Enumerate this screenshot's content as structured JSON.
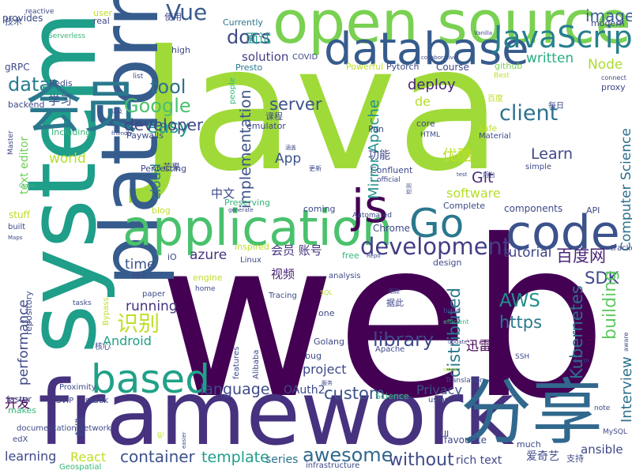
{
  "words": [
    {
      "text": "Java",
      "color": "#a0da39"
    },
    {
      "text": "web",
      "color": "#440154"
    },
    {
      "text": "open source",
      "color": "#7ad151"
    },
    {
      "text": "framework",
      "color": "#46327e"
    },
    {
      "text": "system",
      "color": "#1f9e89"
    },
    {
      "text": "platform",
      "color": "#365c8d"
    },
    {
      "text": "application",
      "color": "#4ac16d"
    },
    {
      "text": "database",
      "color": "#365c8d"
    },
    {
      "text": "会员",
      "color": "#2a788e"
    },
    {
      "text": "分享",
      "color": "#31688e"
    },
    {
      "text": "code",
      "color": "#3b528b"
    },
    {
      "text": "js",
      "color": "#440154"
    },
    {
      "text": "Go",
      "color": "#2a788e"
    },
    {
      "text": "based",
      "color": "#1fa187"
    },
    {
      "text": "JavaScript",
      "color": "#277f8e"
    },
    {
      "text": "development",
      "color": "#433e85"
    },
    {
      "text": "Vue",
      "color": "#365c8d"
    },
    {
      "text": "docs",
      "color": "#3e4989"
    },
    {
      "text": "image",
      "color": "#355f8d"
    },
    {
      "text": "Google",
      "color": "#4ac16d"
    },
    {
      "text": "tool",
      "color": "#2e6f8e"
    },
    {
      "text": "data",
      "color": "#287c8e"
    },
    {
      "text": "client",
      "color": "#2c728e"
    },
    {
      "text": "server",
      "color": "#3b528b"
    },
    {
      "text": "easy",
      "color": "#1f9a8a"
    },
    {
      "text": "developer",
      "color": "#3f4788"
    },
    {
      "text": "world",
      "color": "#b5de2b"
    },
    {
      "text": "识别",
      "color": "#bddf26"
    },
    {
      "text": "language",
      "color": "#3e4989"
    },
    {
      "text": "container",
      "color": "#3b528b"
    },
    {
      "text": "template",
      "color": "#1f9e89"
    },
    {
      "text": "awesome",
      "color": "#31688e"
    },
    {
      "text": "without",
      "color": "#3e4a89"
    },
    {
      "text": "custom",
      "color": "#3b528b"
    },
    {
      "text": "library",
      "color": "#3e4989"
    },
    {
      "text": "distributed",
      "color": "#2a788e"
    },
    {
      "text": "https",
      "color": "#2a788e"
    },
    {
      "text": "AWS",
      "color": "#21918c"
    },
    {
      "text": "SDK",
      "color": "#3e4989"
    },
    {
      "text": "Kubernetes",
      "color": "#2d708e"
    },
    {
      "text": "building",
      "color": "#5ec962"
    },
    {
      "text": "Interview",
      "color": "#2d708e"
    },
    {
      "text": "百度网",
      "color": "#482475"
    },
    {
      "text": "tutorial",
      "color": "#404688"
    },
    {
      "text": "Computer Science",
      "color": "#2d708e"
    },
    {
      "text": "Learn",
      "color": "#3f4788"
    },
    {
      "text": "Git",
      "color": "#472d7b"
    },
    {
      "text": "App",
      "color": "#3b528b"
    },
    {
      "text": "优酷",
      "color": "#bddf26"
    },
    {
      "text": "implementation",
      "color": "#3b528b"
    },
    {
      "text": "Mirror Apache",
      "color": "#21918c"
    },
    {
      "text": "solution",
      "color": "#433e85"
    },
    {
      "text": "written",
      "color": "#29af7f"
    },
    {
      "text": "Node",
      "color": "#addc30"
    },
    {
      "text": "deploy",
      "color": "#482878"
    },
    {
      "text": "Privacy",
      "color": "#3b528b"
    },
    {
      "text": "software",
      "color": "#b5de2b"
    },
    {
      "text": "cloud",
      "color": "#2a788e"
    },
    {
      "text": "Android",
      "color": "#1fa187"
    },
    {
      "text": "running",
      "color": "#46337e"
    },
    {
      "text": "azure",
      "color": "#46337e"
    },
    {
      "text": "time",
      "color": "#3b528b"
    },
    {
      "text": "performance",
      "color": "#3e4989"
    },
    {
      "text": "learning",
      "color": "#3e4989"
    },
    {
      "text": "React",
      "color": "#bddf26"
    },
    {
      "text": "series",
      "color": "#2c728e"
    },
    {
      "text": "rich text",
      "color": "#404688"
    },
    {
      "text": "ansible",
      "color": "#3e4989"
    },
    {
      "text": "爱奇艺",
      "color": "#3e4989"
    },
    {
      "text": "开发",
      "color": "#440154"
    },
    {
      "text": "project",
      "color": "#3e4989"
    },
    {
      "text": "视频",
      "color": "#482475"
    },
    {
      "text": "会员 账号",
      "color": "#46337e"
    },
    {
      "text": "迅雷",
      "color": "#440154"
    },
    {
      "text": "学习",
      "color": "#3b528b"
    },
    {
      "text": "Chrome",
      "color": "#3e4989"
    },
    {
      "text": "面试",
      "color": "#1f9e89"
    },
    {
      "text": "功能",
      "color": "#3e4989"
    },
    {
      "text": "text editor",
      "color": "#6ece58"
    },
    {
      "text": "repository",
      "color": "#3e4989"
    },
    {
      "text": "de",
      "color": "#b5de2b"
    },
    {
      "text": "components",
      "color": "#3e4989"
    },
    {
      "text": "provides",
      "color": "#3e4989"
    },
    {
      "text": "reactive",
      "color": "#3e4989"
    },
    {
      "text": "技术",
      "color": "#3b528b"
    },
    {
      "text": "Serverless",
      "color": "#35b779"
    },
    {
      "text": "gRPC",
      "color": "#3e4989"
    },
    {
      "text": "backend",
      "color": "#3e4989"
    },
    {
      "text": "Redis",
      "color": "#3e4989"
    },
    {
      "text": "modern",
      "color": "#3e4989"
    },
    {
      "text": "Currently",
      "color": "#2a788e"
    },
    {
      "text": "high",
      "color": "#3e4989"
    },
    {
      "text": "Presto",
      "color": "#2a788e"
    },
    {
      "text": "Pytorch",
      "color": "#3e4989"
    },
    {
      "text": "Powerful",
      "color": "#bddf26"
    },
    {
      "text": "Course",
      "color": "#3e4989"
    },
    {
      "text": "COVID",
      "color": "#3e4989"
    },
    {
      "text": "github",
      "color": "#7ad151"
    },
    {
      "text": "Best",
      "color": "#bddf26"
    },
    {
      "text": "proxy",
      "color": "#3e4989"
    },
    {
      "text": "connect",
      "color": "#3e4989"
    },
    {
      "text": "list",
      "color": "#3e4989"
    },
    {
      "text": "user",
      "color": "#bddf26"
    },
    {
      "text": "real",
      "color": "#3e4989"
    },
    {
      "text": "使用",
      "color": "#3e4989"
    },
    {
      "text": "百度",
      "color": "#bddf26"
    },
    {
      "text": "每日",
      "color": "#3e4989"
    },
    {
      "text": "以及",
      "color": "#3e4989"
    },
    {
      "text": "emulator",
      "color": "#3e4989"
    },
    {
      "text": "课程",
      "color": "#3e4989"
    },
    {
      "text": "people",
      "color": "#35b779"
    },
    {
      "text": "Paywalls",
      "color": "#3e4989"
    },
    {
      "text": "Including",
      "color": "#35b779"
    },
    {
      "text": "friendly",
      "color": "#3e4989"
    },
    {
      "text": "Pan",
      "color": "#3e4989"
    },
    {
      "text": "core",
      "color": "#3e4989"
    },
    {
      "text": "HTML",
      "color": "#3e4989"
    },
    {
      "text": "safe",
      "color": "#bddf26"
    },
    {
      "text": "Material",
      "color": "#3e4989"
    },
    {
      "text": "Master",
      "color": "#3e4989"
    },
    {
      "text": "Pentesting",
      "color": "#3e4989"
    },
    {
      "text": "芒果",
      "color": "#3e4989"
    },
    {
      "text": "涵盖",
      "color": "#3e4989"
    },
    {
      "text": "Confluent",
      "color": "#3e4989"
    },
    {
      "text": "official",
      "color": "#3e4989"
    },
    {
      "text": "simple",
      "color": "#3e4989"
    },
    {
      "text": "Curso",
      "color": "#35b779"
    },
    {
      "text": "更新",
      "color": "#3e4989"
    },
    {
      "text": "检测",
      "color": "#3e4989"
    },
    {
      "text": "test",
      "color": "#3e4989"
    },
    {
      "text": "后台",
      "color": "#3e4989"
    },
    {
      "text": "中文",
      "color": "#3e4989"
    },
    {
      "text": "stuff",
      "color": "#bddf26"
    },
    {
      "text": "blog",
      "color": "#bddf26"
    },
    {
      "text": "Preserving",
      "color": "#35b779"
    },
    {
      "text": "generate",
      "color": "#3e4989"
    },
    {
      "text": "coming",
      "color": "#3e4989"
    },
    {
      "text": "Complete",
      "color": "#3e4989"
    },
    {
      "text": "Automated",
      "color": "#3e4989"
    },
    {
      "text": "API",
      "color": "#3e4989"
    },
    {
      "text": "built",
      "color": "#3e4989"
    },
    {
      "text": "Maps",
      "color": "#3e4989"
    },
    {
      "text": "inspired",
      "color": "#bddf26"
    },
    {
      "text": "Linux",
      "color": "#3e4989"
    },
    {
      "text": "free",
      "color": "#35b779"
    },
    {
      "text": "Repo",
      "color": "#3e4989"
    },
    {
      "text": "design",
      "color": "#3e4989"
    },
    {
      "text": "tracker",
      "color": "#3e4989"
    },
    {
      "text": "iO",
      "color": "#3e4989"
    },
    {
      "text": "腾讯",
      "color": "#3e4989"
    },
    {
      "text": "engine",
      "color": "#bddf26"
    },
    {
      "text": "analysis",
      "color": "#3e4989"
    },
    {
      "text": "paper",
      "color": "#3e4989"
    },
    {
      "text": "home",
      "color": "#3e4989"
    },
    {
      "text": "Tracing",
      "color": "#3e4989"
    },
    {
      "text": "SQL",
      "color": "#bddf26"
    },
    {
      "text": "跟踪",
      "color": "#3e4989"
    },
    {
      "text": "据此",
      "color": "#3e4989"
    },
    {
      "text": "build",
      "color": "#3e4989"
    },
    {
      "text": "efficient",
      "color": "#35b779"
    },
    {
      "text": "tasks",
      "color": "#3e4989"
    },
    {
      "text": "Bypass",
      "color": "#bddf26"
    },
    {
      "text": "one",
      "color": "#3e4989"
    },
    {
      "text": "org",
      "color": "#3e4989"
    },
    {
      "text": "核心",
      "color": "#3e4989"
    },
    {
      "text": "features",
      "color": "#3e4989"
    },
    {
      "text": "Alibaba",
      "color": "#3e4989"
    },
    {
      "text": "Golang",
      "color": "#3e4989"
    },
    {
      "text": "bug",
      "color": "#3e4989"
    },
    {
      "text": "Apache",
      "color": "#3e4989"
    },
    {
      "text": "update",
      "color": "#3e4989"
    },
    {
      "text": "SSH",
      "color": "#3e4989"
    },
    {
      "text": "icons",
      "color": "#bddf26"
    },
    {
      "text": "Earth",
      "color": "#3e4989"
    },
    {
      "text": "aware",
      "color": "#3e4989"
    },
    {
      "text": "Proximity",
      "color": "#3e4989"
    },
    {
      "text": "faster",
      "color": "#3e4989"
    },
    {
      "text": "OAuth2",
      "color": "#3e4989"
    },
    {
      "text": "服务",
      "color": "#3e4989"
    },
    {
      "text": "Translation",
      "color": "#3e4989"
    },
    {
      "text": "Science",
      "color": "#35b779"
    },
    {
      "text": "using",
      "color": "#3e4989"
    },
    {
      "text": "makes",
      "color": "#35b779"
    },
    {
      "text": "SVIP",
      "color": "#3e4989"
    },
    {
      "text": "stack",
      "color": "#3e4989"
    },
    {
      "text": "documentation network",
      "color": "#3e4989"
    },
    {
      "text": "edX",
      "color": "#3e4989"
    },
    {
      "text": "超级",
      "color": "#3e4989"
    },
    {
      "text": "吧",
      "color": "#bddf26"
    },
    {
      "text": "easier",
      "color": "#3e4989"
    },
    {
      "text": "favourite",
      "color": "#3e4989"
    },
    {
      "text": "UI",
      "color": "#3e4989"
    },
    {
      "text": "much",
      "color": "#3e4989"
    },
    {
      "text": "MySQL",
      "color": "#3e4989"
    },
    {
      "text": "note",
      "color": "#3e4989"
    },
    {
      "text": "支持",
      "color": "#3e4989"
    },
    {
      "text": "Geospatial",
      "color": "#35b779"
    },
    {
      "text": "infrastructure",
      "color": "#3e4989"
    },
    {
      "text": "collaborative",
      "color": "#3e4989"
    },
    {
      "text": "Vanilla",
      "color": "#3e4989"
    },
    {
      "text": "done",
      "color": "#3e4989"
    }
  ]
}
